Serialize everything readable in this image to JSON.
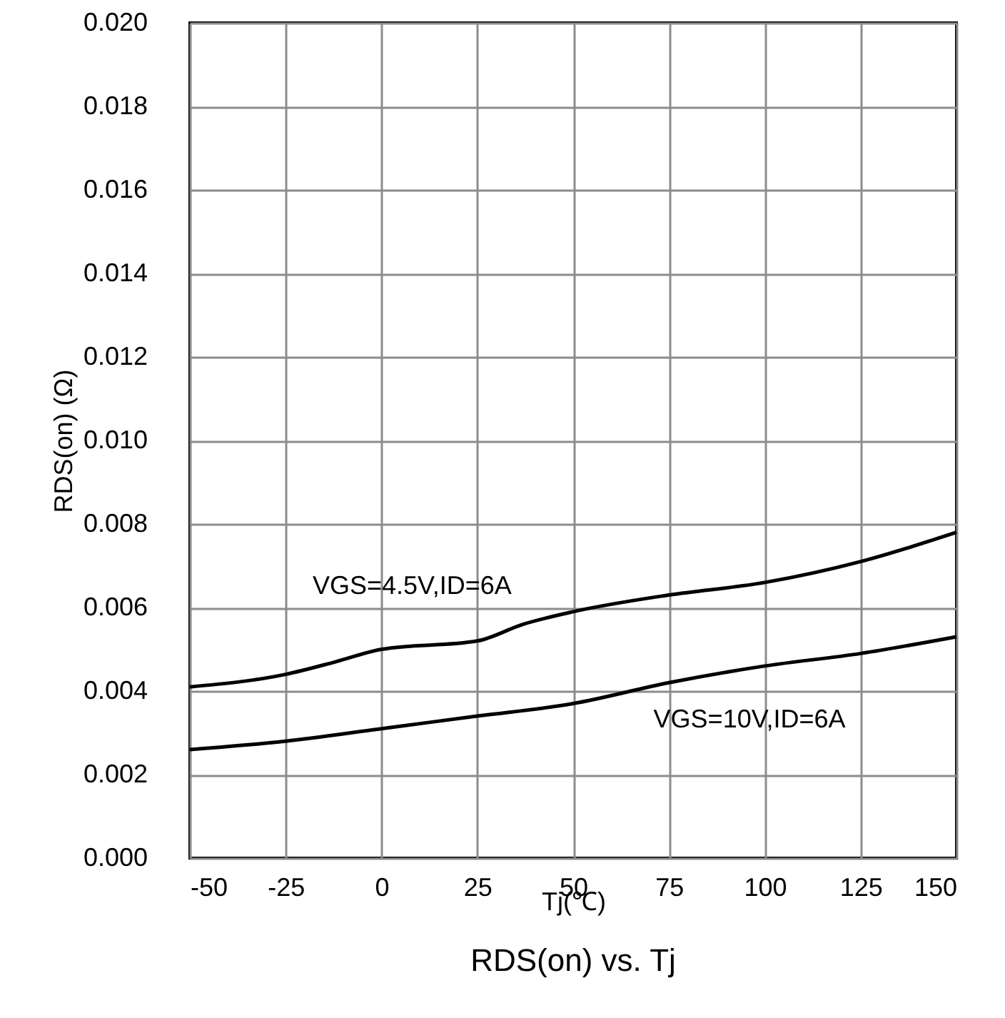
{
  "chart_data": {
    "type": "line",
    "title": "RDS(on) vs. Tj",
    "xlabel": "Tj(℃)",
    "ylabel": "RDS(on) (Ω)",
    "x": [
      -50,
      -25,
      -12,
      0,
      25,
      37,
      50,
      75,
      100,
      125,
      150
    ],
    "series": [
      {
        "color": "#000000",
        "values": [
          0.0041,
          0.0044,
          0.0047,
          0.005,
          0.0052,
          0.0056,
          0.0059,
          0.0063,
          0.0066,
          0.0071,
          0.0078
        ]
      },
      {
        "color": "#000000",
        "x": [
          -50,
          -25,
          0,
          25,
          50,
          75,
          100,
          125,
          150
        ],
        "values": [
          0.0026,
          0.0028,
          0.0031,
          0.0034,
          0.0037,
          0.0042,
          0.0046,
          0.0049,
          0.0053
        ]
      }
    ],
    "xlim": [
      -50,
      150
    ],
    "xticks": [
      -50,
      -25,
      0,
      25,
      50,
      75,
      100,
      125,
      150
    ],
    "ylim": [
      0,
      0.02
    ],
    "yticks": [
      {
        "value": 0,
        "label": "0.000"
      },
      {
        "value": 0.002,
        "label": "0.002"
      },
      {
        "value": 0.004,
        "label": "0.004"
      },
      {
        "value": 0.006,
        "label": "0.006"
      },
      {
        "value": 0.008,
        "label": "0.008"
      },
      {
        "value": 0.01,
        "label": "0.010"
      },
      {
        "value": 0.012,
        "label": "0.012"
      },
      {
        "value": 0.014,
        "label": "0.014"
      },
      {
        "value": 0.016,
        "label": "0.016"
      },
      {
        "value": 0.018,
        "label": "0.018"
      },
      {
        "value": 0.02,
        "label": "0.020"
      }
    ],
    "grid": true,
    "line_style": "solid",
    "marker": "none",
    "annotations": [
      "VGS=4.5V,ID=6A",
      "VGS=10V,ID=6A"
    ]
  }
}
